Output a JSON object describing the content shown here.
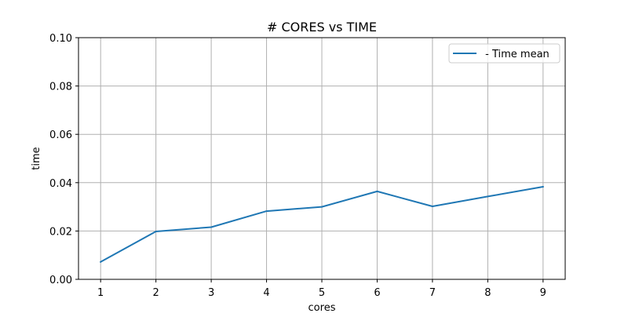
{
  "chart_data": {
    "type": "line",
    "title": "# CORES vs TIME",
    "xlabel": "cores",
    "ylabel": "time",
    "xlim": [
      0.6,
      9.4
    ],
    "ylim": [
      0.0,
      0.1
    ],
    "x_ticks": [
      1,
      2,
      3,
      4,
      5,
      6,
      7,
      8,
      9
    ],
    "y_ticks": [
      0.0,
      0.02,
      0.04,
      0.06,
      0.08,
      0.1
    ],
    "y_tick_labels": [
      "0.00",
      "0.02",
      "0.04",
      "0.06",
      "0.08",
      "0.10"
    ],
    "grid": true,
    "legend_position": "top-right",
    "series": [
      {
        "name": " - Time mean",
        "color": "#1f77b4",
        "x": [
          1,
          2,
          3,
          4,
          5,
          6,
          7,
          8,
          9
        ],
        "y": [
          0.0072,
          0.0198,
          0.0216,
          0.0282,
          0.03,
          0.0364,
          0.0302,
          0.0343,
          0.0383
        ]
      }
    ]
  }
}
